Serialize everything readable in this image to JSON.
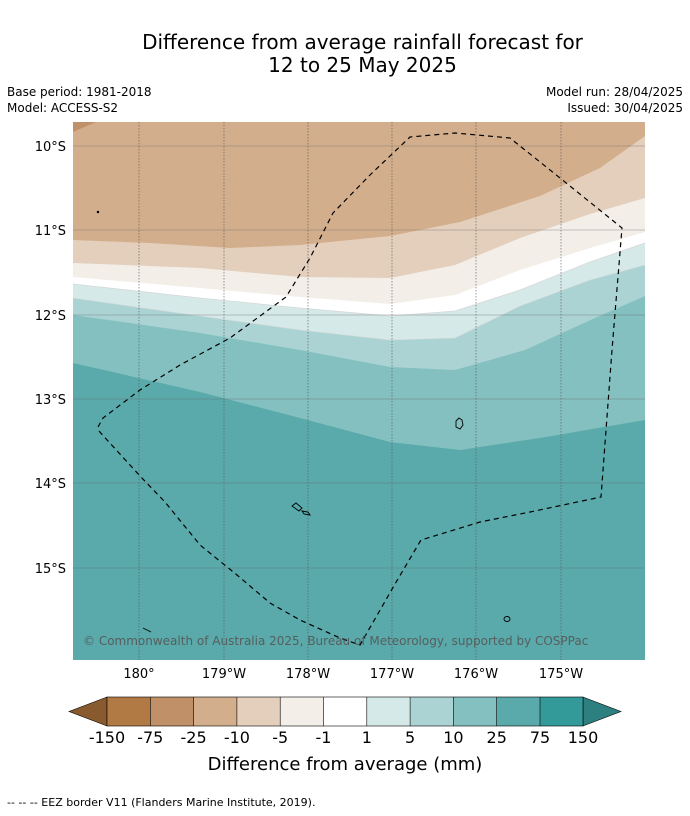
{
  "title": {
    "line1": "Difference from average rainfall forecast for",
    "line2": "12 to 25 May 2025"
  },
  "meta_left": {
    "base_period": "Base period: 1981-2018",
    "model": "Model: ACCESS-S2"
  },
  "meta_right": {
    "model_run": "Model run: 28/04/2025",
    "issued": "Issued: 30/04/2025"
  },
  "map": {
    "lat_labels": [
      "10°S",
      "11°S",
      "12°S",
      "13°S",
      "14°S",
      "15°S"
    ],
    "lon_labels": [
      "180°",
      "179°W",
      "178°W",
      "177°W",
      "176°W",
      "175°W"
    ],
    "copyright": "© Commonwealth of Australia 2025, Bureau of Meteorology, supported by COSPPac"
  },
  "legend": {
    "values": [
      "-150",
      "-75",
      "-25",
      "-10",
      "-5",
      "-1",
      "1",
      "5",
      "10",
      "25",
      "75",
      "150"
    ],
    "colors": [
      "#8a5a2f",
      "#b17a45",
      "#c09068",
      "#d3ae8c",
      "#e3cfbc",
      "#f3eee8",
      "#ffffff",
      "#d5e9e9",
      "#abd3d4",
      "#84c0c0",
      "#5aaaab",
      "#339999",
      "#2e7f7f"
    ],
    "title": "Difference from average (mm)"
  },
  "footer": "--  --  -- EEZ border V11 (Flanders Marine Institute, 2019)."
}
